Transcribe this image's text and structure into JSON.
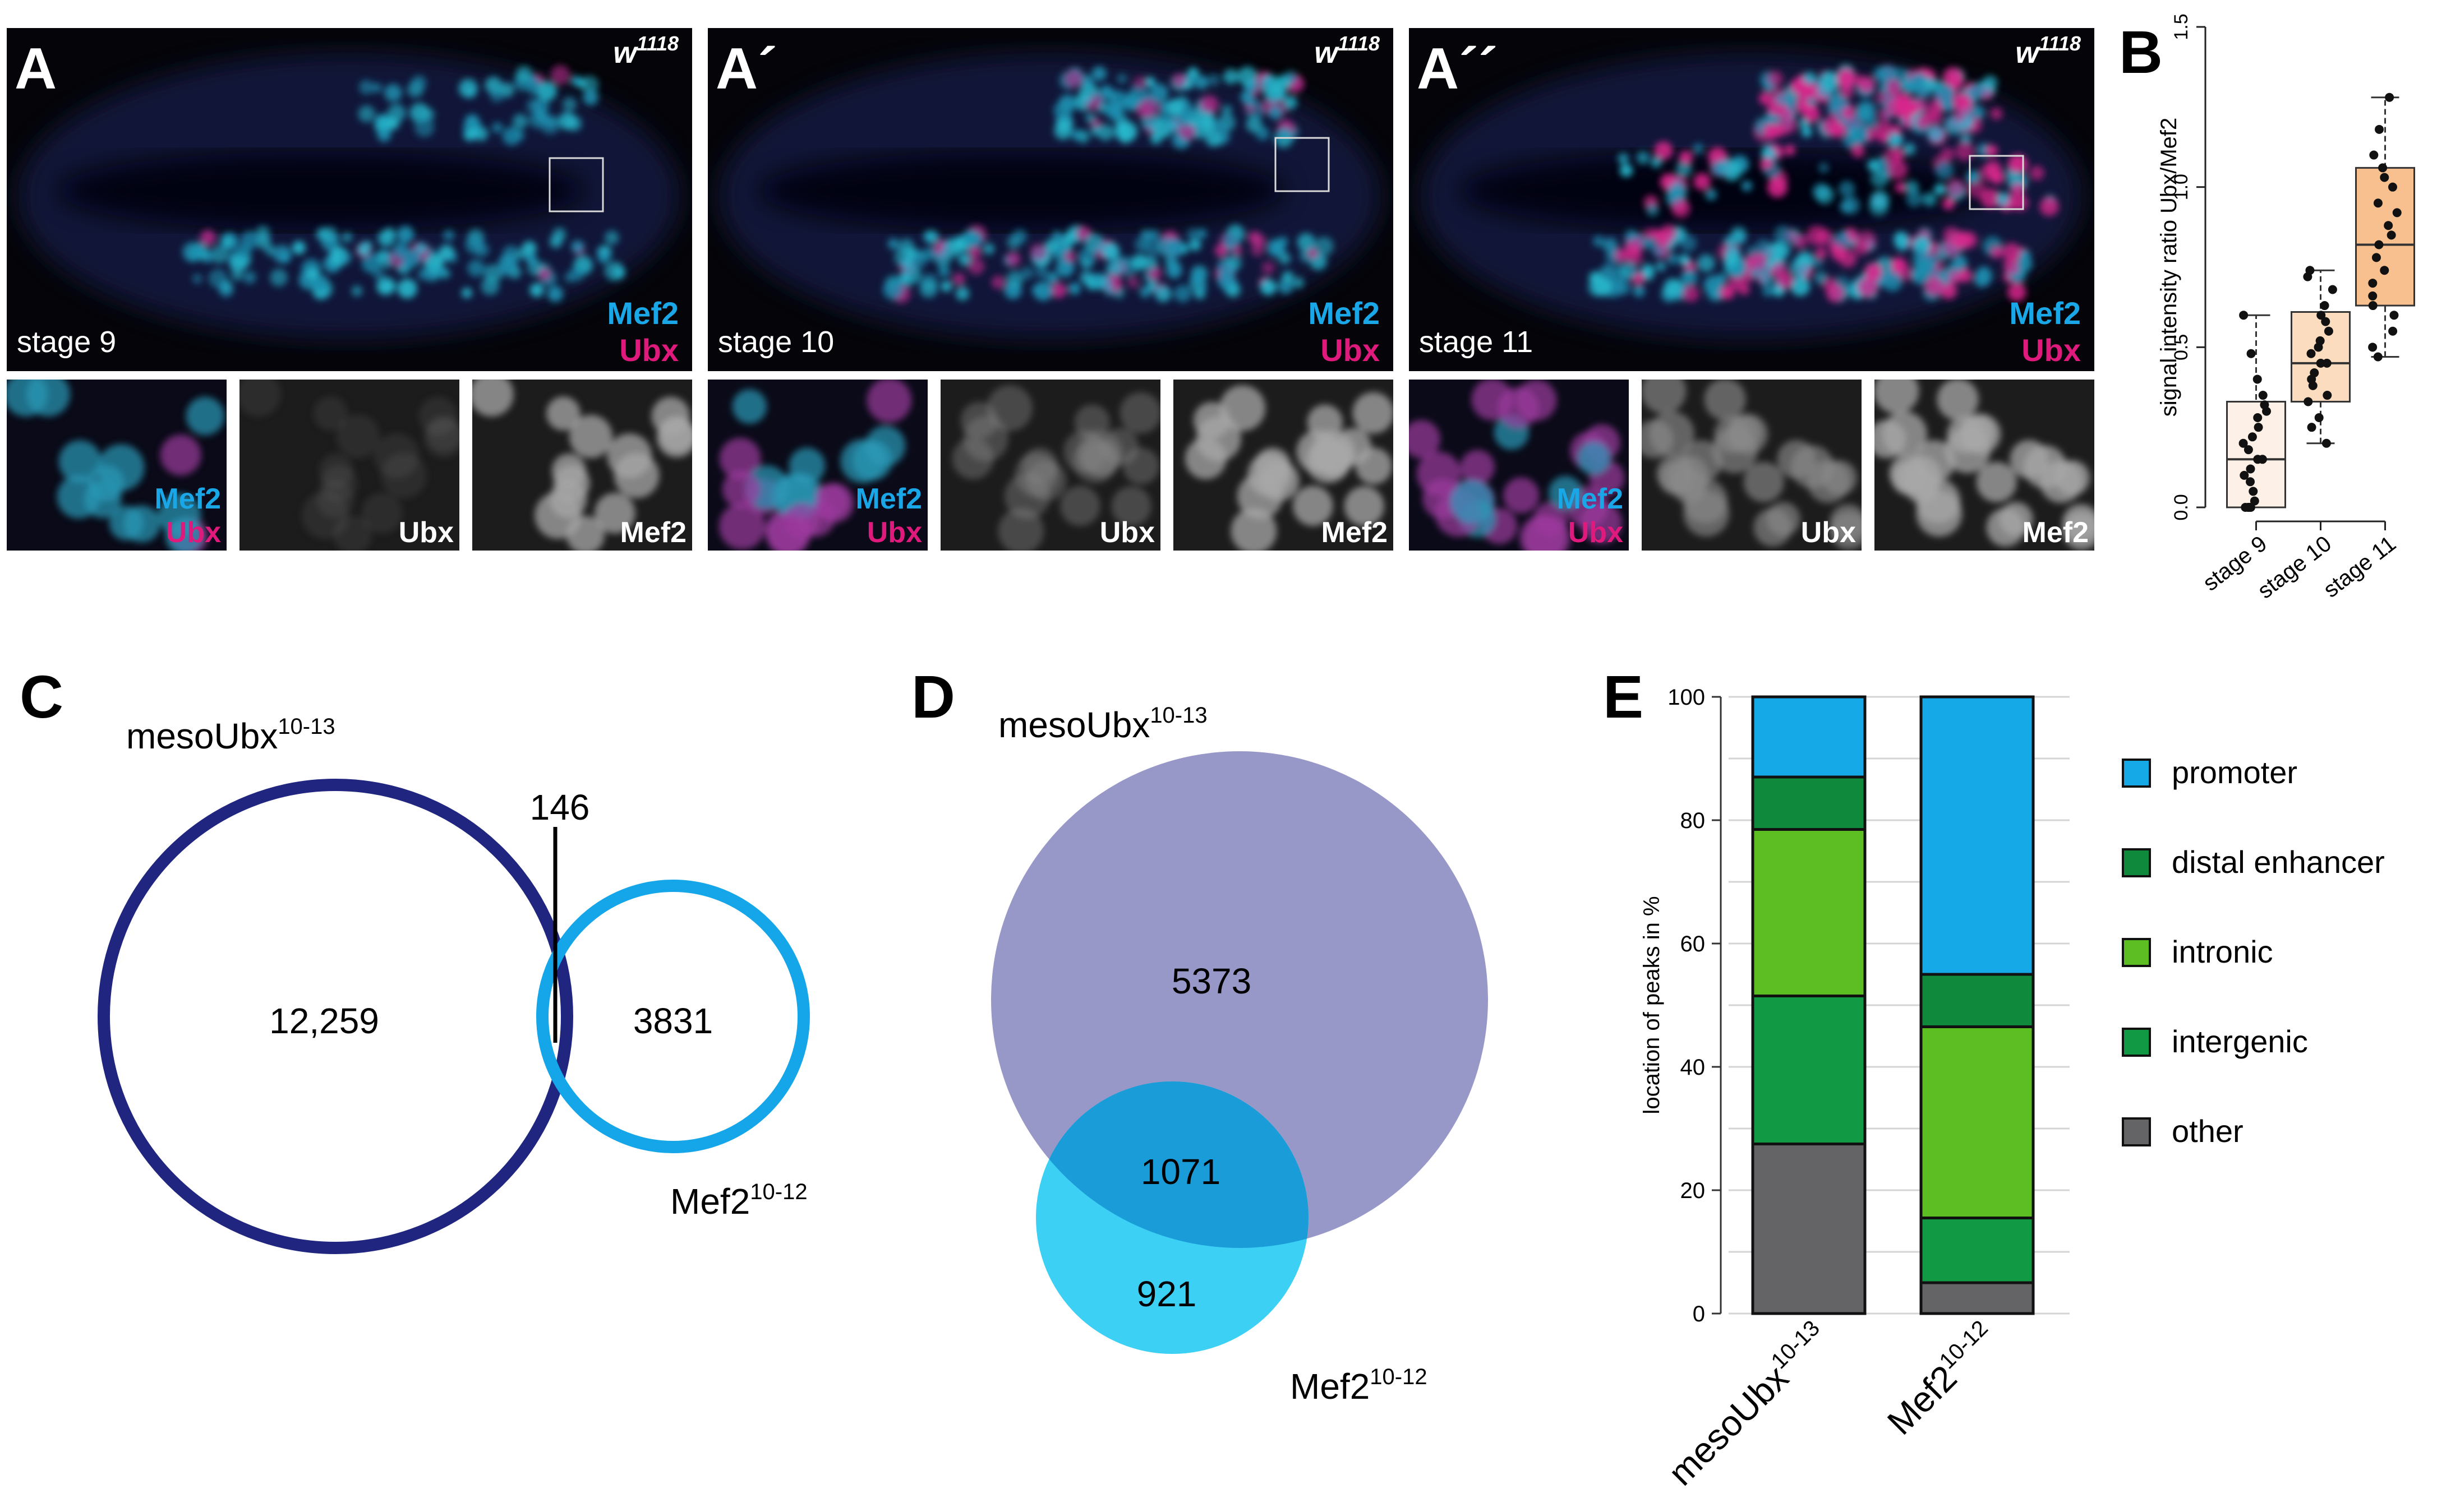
{
  "panel_letters": {
    "A": "A",
    "A1": "A´",
    "A2": "A´´",
    "B": "B",
    "C": "C",
    "D": "D",
    "E": "E"
  },
  "genotype": "w",
  "genotype_sup": "1118",
  "marker_mef2": "Mef2",
  "marker_ubx": "Ubx",
  "stages": [
    "stage 9",
    "stage 10",
    "stage 11"
  ],
  "colors": {
    "mef2": "#1aa7e8",
    "ubx": "#e0197d",
    "mesoUbx_ring": "#202680",
    "mef2_ring": "#15a6ea",
    "mesoUbx_fill": "#9898c8",
    "mef2_fill": "#3cd0f5",
    "overlap_fill": "#1a9cd8"
  },
  "chart_data": [
    {
      "panel": "B",
      "type": "box",
      "ylabel": "signal intensity ratio Ubx/Mef2",
      "ylim": [
        0,
        1.5
      ],
      "yticks": [
        "0.0",
        "0.5",
        "1.0",
        "1.5"
      ],
      "categories": [
        "stage 9",
        "stage 10",
        "stage 11"
      ],
      "box_colors": [
        "#fdf1e7",
        "#fbdcbf",
        "#f8c08e"
      ],
      "boxes": [
        {
          "min": 0.0,
          "q1": 0.0,
          "median": 0.15,
          "q3": 0.33,
          "max": 0.6,
          "points": [
            0.0,
            0.0,
            0.0,
            0.0,
            0.02,
            0.05,
            0.08,
            0.1,
            0.12,
            0.15,
            0.15,
            0.18,
            0.2,
            0.22,
            0.25,
            0.28,
            0.3,
            0.32,
            0.35,
            0.4,
            0.48,
            0.6
          ]
        },
        {
          "min": 0.2,
          "q1": 0.33,
          "median": 0.45,
          "q3": 0.61,
          "max": 0.74,
          "points": [
            0.2,
            0.25,
            0.28,
            0.33,
            0.35,
            0.38,
            0.4,
            0.42,
            0.45,
            0.45,
            0.48,
            0.5,
            0.52,
            0.55,
            0.58,
            0.6,
            0.63,
            0.68,
            0.72,
            0.74
          ]
        },
        {
          "min": 0.47,
          "q1": 0.63,
          "median": 0.82,
          "q3": 1.06,
          "max": 1.28,
          "points": [
            0.47,
            0.5,
            0.55,
            0.6,
            0.63,
            0.66,
            0.7,
            0.74,
            0.78,
            0.82,
            0.85,
            0.88,
            0.92,
            0.95,
            1.0,
            1.03,
            1.06,
            1.1,
            1.18,
            1.28
          ]
        }
      ]
    },
    {
      "panel": "C",
      "type": "venn",
      "sets": [
        {
          "name": "mesoUbx",
          "sup": "10-13",
          "only": "12,259"
        },
        {
          "name": "Mef2",
          "sup": "10-12",
          "only": "3831"
        }
      ],
      "overlap": "146"
    },
    {
      "panel": "D",
      "type": "venn",
      "sets": [
        {
          "name": "mesoUbx",
          "sup": "10-13",
          "only": "5373"
        },
        {
          "name": "Mef2",
          "sup": "10-12",
          "only": "921"
        }
      ],
      "overlap": "1071"
    },
    {
      "panel": "E",
      "type": "bar",
      "stacked": true,
      "ylabel": "location of peaks in %",
      "ylim": [
        0,
        100
      ],
      "yticks": [
        "0",
        "20",
        "40",
        "60",
        "80",
        "100"
      ],
      "categories": [
        {
          "name": "mesoUbx",
          "sup": "10-13"
        },
        {
          "name": "Mef2",
          "sup": "10-12"
        }
      ],
      "series": [
        {
          "name": "other",
          "color": "#646466",
          "values": [
            27.5,
            5
          ]
        },
        {
          "name": "intergenic",
          "color": "#129943",
          "values": [
            24,
            10.5
          ]
        },
        {
          "name": "intronic",
          "color": "#5cbe23",
          "values": [
            27,
            31
          ]
        },
        {
          "name": "distal enhancer",
          "color": "#0f8a3c",
          "values": [
            8.5,
            8.5
          ]
        },
        {
          "name": "promoter",
          "color": "#16a9e8",
          "values": [
            13,
            45
          ]
        }
      ],
      "legend_order": [
        "promoter",
        "distal enhancer",
        "intronic",
        "intergenic",
        "other"
      ]
    }
  ]
}
